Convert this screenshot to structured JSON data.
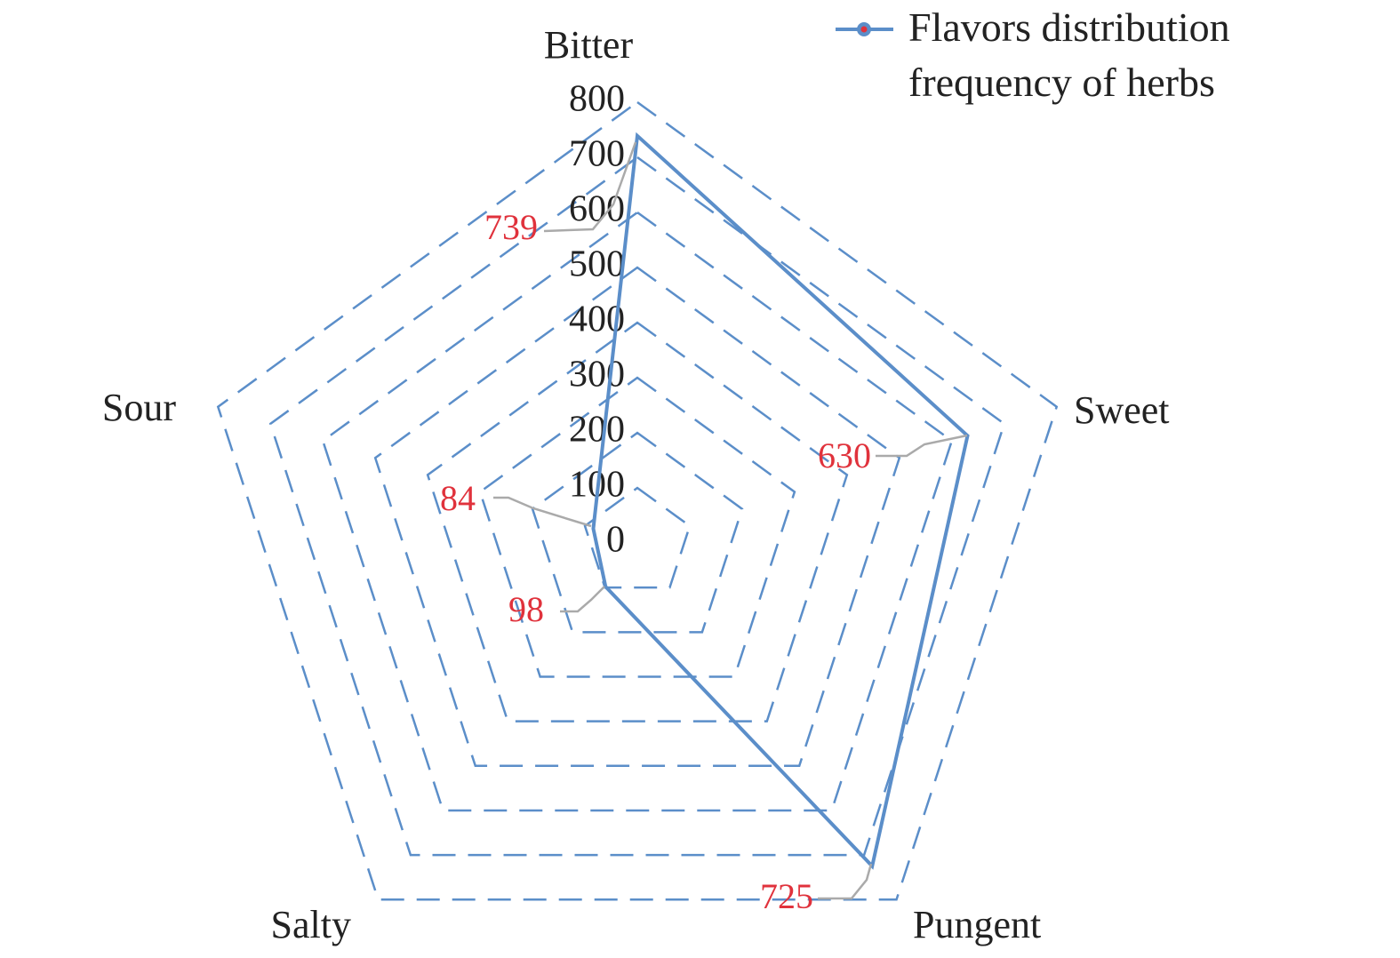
{
  "chart_data": {
    "type": "radar",
    "categories": [
      "Bitter",
      "Sweet",
      "Pungent",
      "Salty",
      "Sour"
    ],
    "series": [
      {
        "name": "Flavors distribution frequency of herbs",
        "color": "#5b8ec9",
        "values": [
          739,
          630,
          725,
          98,
          84
        ]
      }
    ],
    "rlim": [
      0,
      800
    ],
    "rticks": [
      0,
      100,
      200,
      300,
      400,
      500,
      600,
      700,
      800
    ],
    "grid": true,
    "grid_color": "#5b8ec9",
    "value_label_color": "#e0323c",
    "legend": "top-right"
  }
}
